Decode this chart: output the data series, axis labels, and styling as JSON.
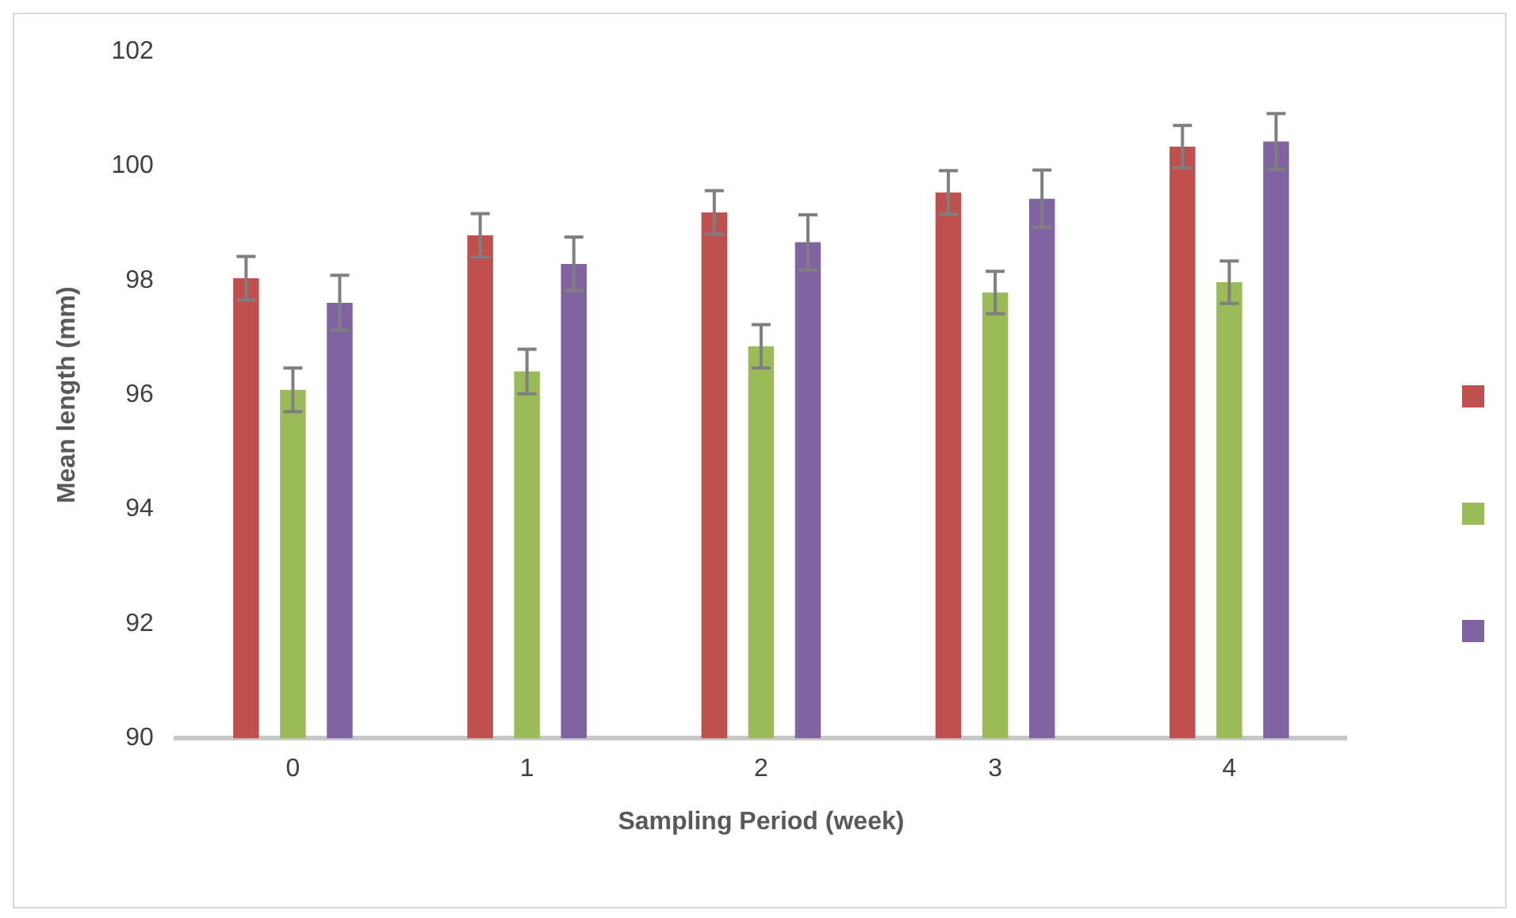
{
  "chart_data": {
    "type": "bar",
    "xlabel": "Sampling Period (week)",
    "ylabel": "Mean length (mm)",
    "categories": [
      "0",
      "1",
      "2",
      "3",
      "4"
    ],
    "series": [
      {
        "color": "#c0504d",
        "values": [
          98.04,
          98.79,
          99.19,
          99.54,
          100.34
        ],
        "errors": [
          0.38,
          0.38,
          0.38,
          0.38,
          0.37
        ]
      },
      {
        "color": "#9bbb59",
        "values": [
          96.09,
          96.41,
          96.85,
          97.79,
          97.97
        ],
        "errors": [
          0.38,
          0.39,
          0.38,
          0.37,
          0.37
        ]
      },
      {
        "color": "#8064a2",
        "values": [
          97.61,
          98.29,
          98.67,
          99.43,
          100.43
        ],
        "errors": [
          0.48,
          0.47,
          0.48,
          0.5,
          0.49
        ]
      }
    ],
    "ylim": [
      90,
      102
    ],
    "yticks": [
      90,
      92,
      94,
      96,
      98,
      100,
      102
    ],
    "grid": false
  }
}
